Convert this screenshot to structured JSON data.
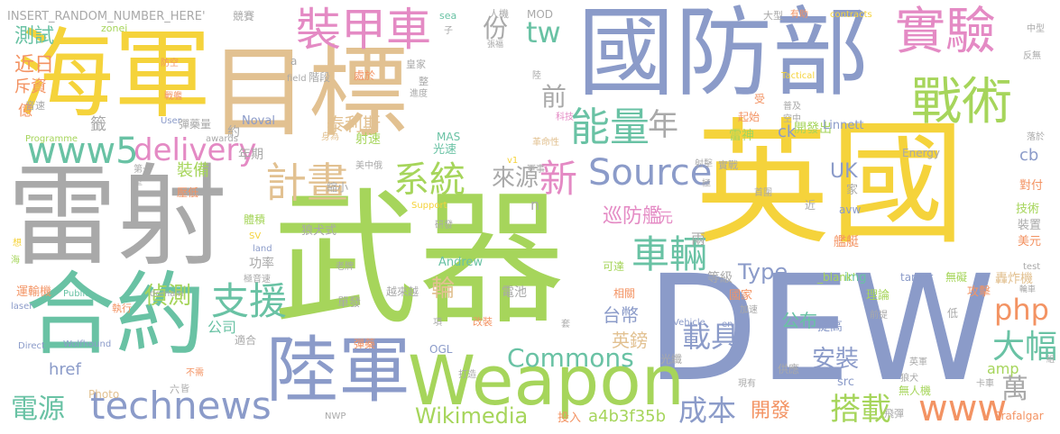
{
  "palette": {
    "yellow": "#f5d33b",
    "tan": "#e2c191",
    "periwinkle": "#8b9bc9",
    "gray": "#a9a9a9",
    "green": "#a6d55b",
    "teal": "#69c2a4",
    "orange": "#f39363",
    "pink": "#e48ac4"
  },
  "words": {
    "w1": "海軍",
    "w2": "目標",
    "w3": "國防部",
    "w4": "實驗",
    "w5": "裝甲車",
    "w6": "戰術",
    "w7": "www5",
    "w8": "delivery",
    "w9": "能量",
    "w10": "雷射",
    "w11": "英國",
    "w12": "武器",
    "w13": "合約",
    "w14": "DEW",
    "w15": "陸軍",
    "w16": "Weapon",
    "w17": "technews",
    "w18": "計畫",
    "w19": "系統",
    "w20": "Source",
    "w21": "新",
    "w22": "車輛",
    "w23": "支援",
    "w24": "Commons",
    "w25": "Wikimedia",
    "w26": "載具",
    "w27": "大幅",
    "w28": "php",
    "w29": "搭載",
    "w30": "www",
    "w31": "成本",
    "w32": "開發",
    "w33": "電源",
    "w34": "偵測",
    "w35": "份",
    "w36": "tw",
    "w37": "前",
    "w38": "年",
    "w39": "來源",
    "w40": "巡防艦",
    "w41": "UK",
    "w42": "Type",
    "w43": "英鎊",
    "w44": "安裝",
    "w45": "台幣",
    "w46": "公布",
    "w47": "萬",
    "w48": "a4b3f35b",
    "w49": "輪",
    "w50": "測試",
    "w51": "近日",
    "w52": "斥資",
    "w53": "億",
    "w54": "裝備",
    "w55": "泰利斯",
    "w56": "公司",
    "w57": "href",
    "w58": "cb",
    "w59": "amp",
    "w60": "雷神",
    "w61": "ck",
    "w62": "開發出",
    "w63": "家",
    "w64": "兩",
    "w65": "元",
    "w66": "年期",
    "w67": "射速",
    "w68": "光速",
    "w69": "約",
    "w70": "Noval",
    "w71": "單發",
    "w72": "電池",
    "w73": "等級",
    "w74": "Andrew",
    "w75": "Linnett",
    "w76": "轟炸機",
    "w77": "技術",
    "w78": "對付",
    "w79": "美元",
    "w80": "裝置",
    "w81": "艦艇",
    "w82": "攻擊",
    "w83": "理論",
    "w84": "無礙",
    "w85": "提高",
    "w86": "英軍",
    "w87": "無人機",
    "w88": "投入",
    "w89": "飛彈",
    "w90": "Trafalgar",
    "w91": "src",
    "w92": "img",
    "w93": "狼犬式",
    "w94": "_blank'",
    "w95": "target",
    "w96": "avw",
    "w97": "Energy",
    "w98": "運輸機",
    "w99": "執行",
    "w100": "適合",
    "w101": "功率",
    "w102": "國家",
    "w103": "越來越",
    "w104": "相關",
    "w105": "可達",
    "w106": "彈藥",
    "w107": "改裝",
    "w108": "OGL",
    "w109": "光纖",
    "w110": "彈藥量",
    "w111": "階段",
    "w112": "處於",
    "w113": "MAS",
    "w114": "體積",
    "w115": "縮小",
    "w116": "壓低",
    "w117": "Photo",
    "w118": "NWP",
    "w119": "六",
    "w120": "皆",
    "w121": "INSERT_RANDOM_NUMBER_HERE'",
    "w122": "競賽",
    "w123": "sea",
    "w124": "人機",
    "w125": "MOD",
    "w126": "大型",
    "w127": "有助",
    "w128": "contracts",
    "w129": "中型",
    "w130": "zonei",
    "w131": "a",
    "w132": "field",
    "w133": "皇家",
    "w134": "整",
    "w135": "進度",
    "w136": "Tactical",
    "w137": "反無",
    "w138": "防空",
    "w139": "戰艦",
    "w140": "音速",
    "w141": "User",
    "w142": "awards",
    "w143": "Programme",
    "w144": "第一",
    "w145": "型",
    "w146": "美中俄",
    "w147": "v1",
    "w148": "軍事",
    "w149": "革命性",
    "w150": "科技",
    "w151": "受",
    "w152": "起始",
    "w153": "普及",
    "w154": "空中",
    "w155": "落於",
    "w156": "首圍",
    "w157": "極",
    "w158": "射擊",
    "w159": "實戰",
    "w160": "近",
    "w161": "Support",
    "w162": "研發",
    "w163": "SV",
    "w164": "land",
    "w165": "極音速",
    "w166": "老牌",
    "w167": "Public",
    "w168": "domain",
    "w169": "Direct",
    "w170": "Wolfhound",
    "w171": "不需",
    "w172": "打造",
    "w173": "項",
    "w174": "套",
    "w175": "Vehicle",
    "w176": "en",
    "w177": "加速",
    "w178": "前提",
    "w179": "低",
    "w180": "現有",
    "w181": "供應",
    "w182": "狼犬",
    "w183": "卡車",
    "w184": "組",
    "w185": "test",
    "w186": "輪車",
    "w187": "陸",
    "w188": "張福",
    "w189": "子",
    "w190": "身為",
    "w191": "想",
    "w192": "海",
    "w193": "laser",
    "w194": "籤",
    "w195": "n"
  }
}
